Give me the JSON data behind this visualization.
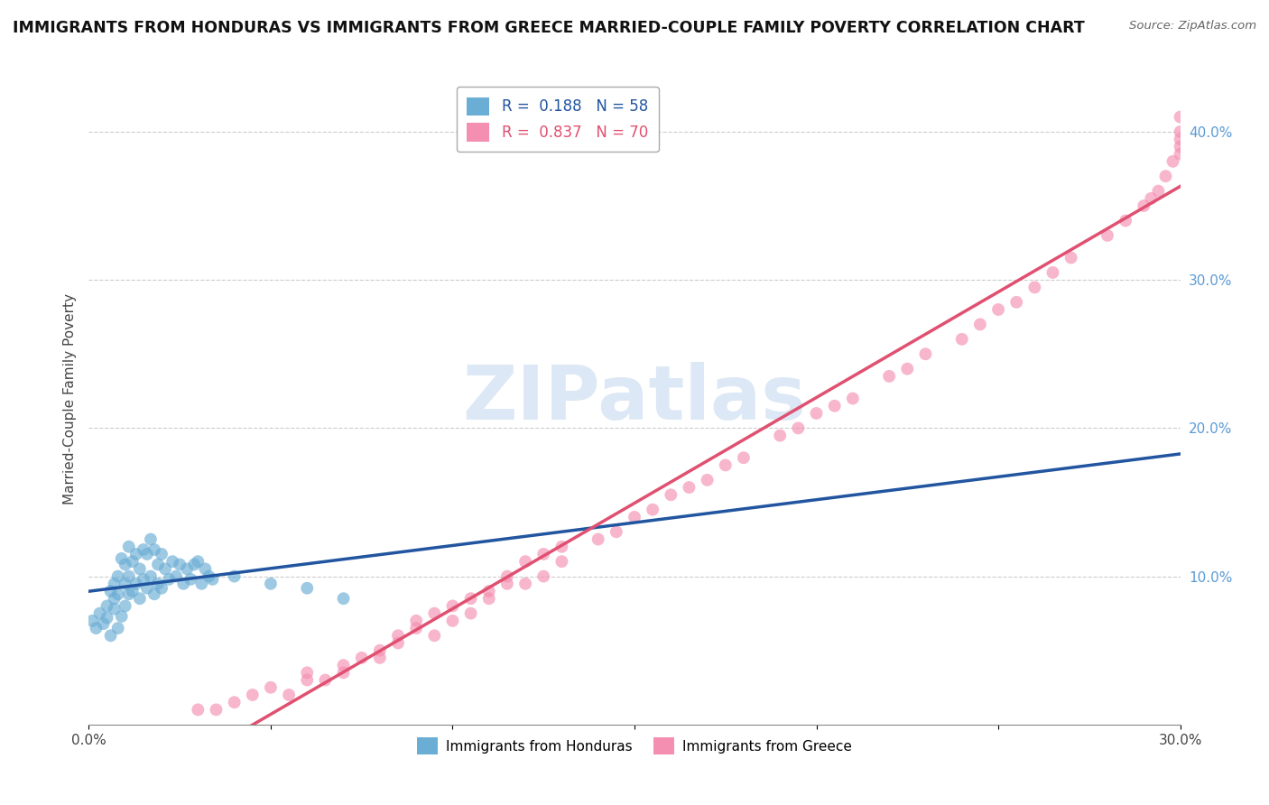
{
  "title": "IMMIGRANTS FROM HONDURAS VS IMMIGRANTS FROM GREECE MARRIED-COUPLE FAMILY POVERTY CORRELATION CHART",
  "source": "Source: ZipAtlas.com",
  "ylabel_left": "Married-Couple Family Poverty",
  "xlim": [
    0.0,
    0.3
  ],
  "ylim": [
    0.0,
    0.44
  ],
  "x_ticks": [
    0.0,
    0.05,
    0.1,
    0.15,
    0.2,
    0.25,
    0.3
  ],
  "x_tick_labels": [
    "0.0%",
    "",
    "",
    "",
    "",
    "",
    "30.0%"
  ],
  "y_ticks_right": [
    0.1,
    0.2,
    0.3,
    0.4
  ],
  "y_tick_labels_right": [
    "10.0%",
    "20.0%",
    "30.0%",
    "40.0%"
  ],
  "legend_blue_R": "0.188",
  "legend_blue_N": "58",
  "legend_pink_R": "0.837",
  "legend_pink_N": "70",
  "blue_color": "#6aadd5",
  "pink_color": "#f48fb1",
  "blue_line_color": "#2255a0",
  "pink_line_color": "#e05070",
  "watermark": "ZIPatlas",
  "watermark_color": "#dce8f5",
  "blue_scatter_x": [
    0.001,
    0.002,
    0.003,
    0.004,
    0.005,
    0.005,
    0.006,
    0.006,
    0.007,
    0.007,
    0.007,
    0.008,
    0.008,
    0.008,
    0.009,
    0.009,
    0.01,
    0.01,
    0.01,
    0.011,
    0.011,
    0.011,
    0.012,
    0.012,
    0.013,
    0.013,
    0.014,
    0.014,
    0.015,
    0.015,
    0.016,
    0.016,
    0.017,
    0.017,
    0.018,
    0.018,
    0.019,
    0.019,
    0.02,
    0.02,
    0.021,
    0.022,
    0.023,
    0.024,
    0.025,
    0.026,
    0.027,
    0.028,
    0.029,
    0.03,
    0.031,
    0.032,
    0.033,
    0.034,
    0.04,
    0.05,
    0.06,
    0.07
  ],
  "blue_scatter_y": [
    0.07,
    0.065,
    0.075,
    0.068,
    0.072,
    0.08,
    0.06,
    0.09,
    0.078,
    0.085,
    0.095,
    0.065,
    0.088,
    0.1,
    0.073,
    0.112,
    0.08,
    0.095,
    0.108,
    0.088,
    0.1,
    0.12,
    0.09,
    0.11,
    0.095,
    0.115,
    0.085,
    0.105,
    0.098,
    0.118,
    0.092,
    0.115,
    0.1,
    0.125,
    0.088,
    0.118,
    0.095,
    0.108,
    0.092,
    0.115,
    0.105,
    0.098,
    0.11,
    0.1,
    0.108,
    0.095,
    0.105,
    0.098,
    0.108,
    0.11,
    0.095,
    0.105,
    0.1,
    0.098,
    0.1,
    0.095,
    0.092,
    0.085
  ],
  "pink_scatter_x": [
    0.03,
    0.035,
    0.04,
    0.045,
    0.05,
    0.055,
    0.06,
    0.06,
    0.065,
    0.07,
    0.07,
    0.075,
    0.08,
    0.08,
    0.085,
    0.085,
    0.09,
    0.09,
    0.095,
    0.095,
    0.1,
    0.1,
    0.105,
    0.105,
    0.11,
    0.11,
    0.115,
    0.115,
    0.12,
    0.12,
    0.125,
    0.125,
    0.13,
    0.13,
    0.14,
    0.145,
    0.15,
    0.155,
    0.16,
    0.165,
    0.17,
    0.175,
    0.18,
    0.19,
    0.195,
    0.2,
    0.205,
    0.21,
    0.22,
    0.225,
    0.23,
    0.24,
    0.245,
    0.25,
    0.255,
    0.26,
    0.265,
    0.27,
    0.28,
    0.285,
    0.29,
    0.292,
    0.294,
    0.296,
    0.298,
    0.3,
    0.3,
    0.3,
    0.3,
    0.3
  ],
  "pink_scatter_y": [
    0.01,
    0.01,
    0.015,
    0.02,
    0.025,
    0.02,
    0.03,
    0.035,
    0.03,
    0.04,
    0.035,
    0.045,
    0.05,
    0.045,
    0.06,
    0.055,
    0.065,
    0.07,
    0.06,
    0.075,
    0.07,
    0.08,
    0.075,
    0.085,
    0.09,
    0.085,
    0.095,
    0.1,
    0.095,
    0.11,
    0.1,
    0.115,
    0.11,
    0.12,
    0.125,
    0.13,
    0.14,
    0.145,
    0.155,
    0.16,
    0.165,
    0.175,
    0.18,
    0.195,
    0.2,
    0.21,
    0.215,
    0.22,
    0.235,
    0.24,
    0.25,
    0.26,
    0.27,
    0.28,
    0.285,
    0.295,
    0.305,
    0.315,
    0.33,
    0.34,
    0.35,
    0.355,
    0.36,
    0.37,
    0.38,
    0.385,
    0.39,
    0.395,
    0.4,
    0.41
  ],
  "bottom_legend_labels": [
    "Immigrants from Honduras",
    "Immigrants from Greece"
  ]
}
